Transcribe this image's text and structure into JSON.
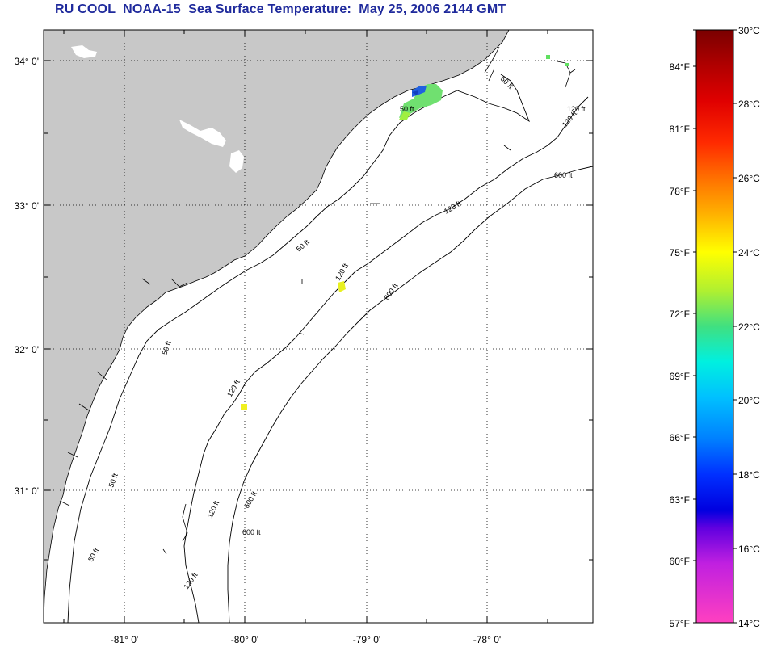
{
  "title": "RU COOL  NOAA-15  Sea Surface Temperature:  May 25, 2006 2144 GMT",
  "map": {
    "lat_labels": [
      "34° 0'",
      "33° 0'",
      "32° 0'",
      "31° 0'"
    ],
    "lon_labels": [
      "-81° 0'",
      "-80° 0'",
      "-79° 0'",
      "-78° 0'"
    ],
    "land_color": "#c8c8c8",
    "grid_style": "dotted",
    "contour_labels": [
      "600 ft",
      "120 ft",
      "50 ft",
      "600 ft",
      "120 ft",
      "50 ft",
      "120 ft",
      "50 ft",
      "120 ft",
      "600 ft",
      "50 ft",
      "120 ft",
      "50 ft",
      "120 ft",
      "600 ft",
      "50 ft",
      "120 ft"
    ]
  },
  "colorbar": {
    "celsius_labels": [
      "30°C",
      "28°C",
      "26°C",
      "24°C",
      "22°C",
      "20°C",
      "18°C",
      "16°C",
      "14°C"
    ],
    "fahrenheit_labels": [
      "84°F",
      "81°F",
      "78°F",
      "75°F",
      "72°F",
      "69°F",
      "66°F",
      "63°F",
      "60°F",
      "57°F"
    ],
    "colors": [
      "#7a0000",
      "#d80000",
      "#ff2a00",
      "#ff7800",
      "#ffc000",
      "#ffff00",
      "#a8f030",
      "#40e080",
      "#00ffff",
      "#00a0ff",
      "#0040ff",
      "#0000e0",
      "#8000e0",
      "#ff20e0",
      "#ff40c0"
    ]
  }
}
